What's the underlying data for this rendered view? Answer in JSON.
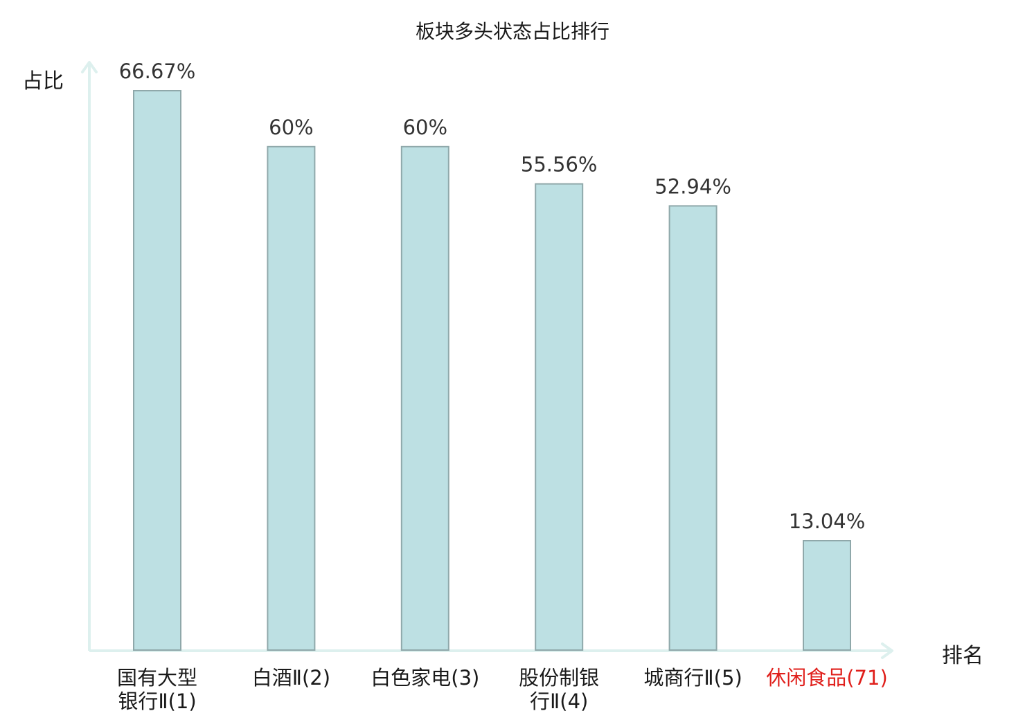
{
  "chart_data": {
    "type": "bar",
    "title": "板块多头状态占比排行",
    "xlabel": "排名",
    "ylabel": "占比",
    "categories": [
      {
        "name": "国有大型银行Ⅱ",
        "rank": "(1)",
        "line1": "国有大型",
        "line2": "银行Ⅱ(1)"
      },
      {
        "name": "白酒Ⅱ",
        "rank": "(2)",
        "line1": "白酒Ⅱ(2)",
        "line2": ""
      },
      {
        "name": "白色家电",
        "rank": "(3)",
        "line1": "白色家电(3)",
        "line2": ""
      },
      {
        "name": "股份制银行Ⅱ",
        "rank": "(4)",
        "line1": "股份制银",
        "line2": "行Ⅱ(4)"
      },
      {
        "name": "城商行Ⅱ",
        "rank": "(5)",
        "line1": "城商行Ⅱ(5)",
        "line2": ""
      },
      {
        "name": "休闲食品",
        "rank": "(71)",
        "line1": "休闲食品(71)",
        "line2": ""
      }
    ],
    "values": [
      66.67,
      60,
      60,
      55.56,
      52.94,
      13.04
    ],
    "value_labels": [
      "66.67%",
      "60%",
      "60%",
      "55.56%",
      "52.94%",
      "13.04%"
    ],
    "ylim": [
      0,
      66.67
    ],
    "grid": false,
    "colors": {
      "bar_fill": "#bde0e3",
      "bar_stroke": "#8fa8aa",
      "axis": "#ddf0ee",
      "highlight_label": "#e0201c",
      "normal_label": "#1a1a1a"
    },
    "highlight_index": 5
  }
}
